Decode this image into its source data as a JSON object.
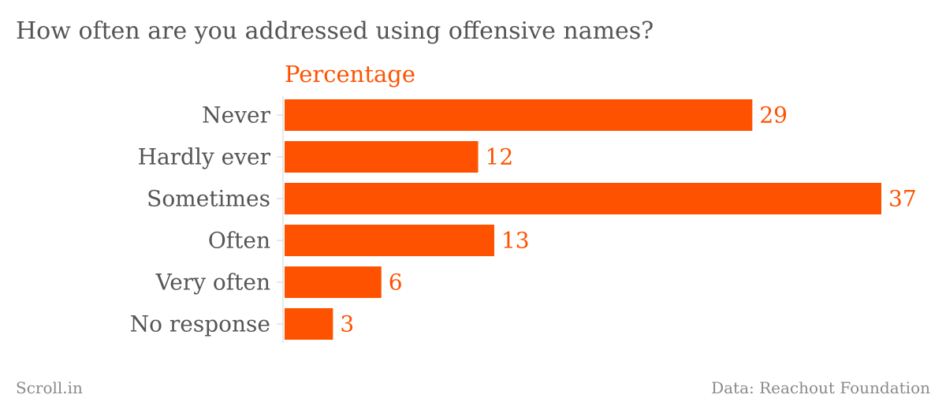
{
  "chart_data": {
    "type": "bar",
    "orientation": "horizontal",
    "title": "How often are you addressed using offensive names?",
    "series": [
      {
        "name": "Percentage",
        "values": [
          29,
          12,
          37,
          13,
          6,
          3
        ]
      }
    ],
    "categories": [
      "Never",
      "Hardly ever",
      "Sometimes",
      "Often",
      "Very often",
      "No response"
    ],
    "xlim": [
      0,
      37
    ],
    "grid": false,
    "legend": "top-left",
    "bar_color": "#ff5200",
    "label_color": "#ff5200"
  },
  "footer": {
    "brand": "Scroll.in",
    "source": "Data: Reachout Foundation"
  }
}
